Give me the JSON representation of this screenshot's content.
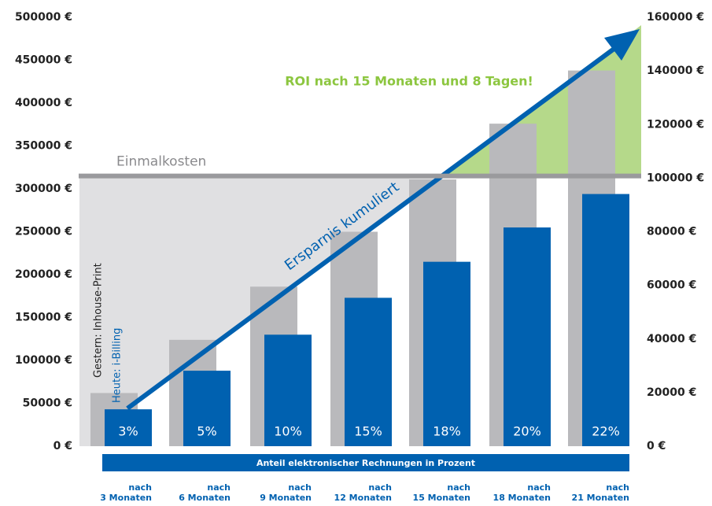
{
  "chart_data": {
    "type": "bar",
    "categories": [
      [
        "nach",
        "3 Monaten"
      ],
      [
        "nach",
        "6 Monaten"
      ],
      [
        "nach",
        "9 Monaten"
      ],
      [
        "nach",
        "12 Monaten"
      ],
      [
        "nach",
        "15 Monaten"
      ],
      [
        "nach",
        "18 Monaten"
      ],
      [
        "nach",
        "21 Monaten"
      ]
    ],
    "series": [
      {
        "name": "Gestern: Inhouse-Print",
        "color": "#b9b9bc",
        "values": [
          62000,
          124000,
          186000,
          250000,
          311000,
          376000,
          438000
        ]
      },
      {
        "name": "Heute: i-Billing",
        "color": "#0061b0",
        "values": [
          43000,
          88000,
          130000,
          173000,
          215000,
          255000,
          294000
        ],
        "value_labels": [
          "3%",
          "5%",
          "10%",
          "15%",
          "18%",
          "20%",
          "22%"
        ]
      }
    ],
    "ylim": [
      0,
      500000
    ],
    "yticks": [
      {
        "value": 0,
        "label": "0 €"
      },
      {
        "value": 50000,
        "label": "50000 €"
      },
      {
        "value": 100000,
        "label": "100000 €"
      },
      {
        "value": 150000,
        "label": "150000 €"
      },
      {
        "value": 200000,
        "label": "200000 €"
      },
      {
        "value": 250000,
        "label": "250000 €"
      },
      {
        "value": 300000,
        "label": "300000 €"
      },
      {
        "value": 350000,
        "label": "350000 €"
      },
      {
        "value": 400000,
        "label": "400000 €"
      },
      {
        "value": 450000,
        "label": "450000 €"
      },
      {
        "value": 500000,
        "label": "500000 €"
      }
    ],
    "y2lim": [
      0,
      160000
    ],
    "y2ticks": [
      {
        "value": 0,
        "label": "0 €"
      },
      {
        "value": 20000,
        "label": "20000 €"
      },
      {
        "value": 40000,
        "label": "40000 €"
      },
      {
        "value": 60000,
        "label": "60000 €"
      },
      {
        "value": 80000,
        "label": "80000 €"
      },
      {
        "value": 100000,
        "label": "100000 €"
      },
      {
        "value": 120000,
        "label": "120000 €"
      },
      {
        "value": 140000,
        "label": "140000 €"
      },
      {
        "value": 160000,
        "label": "160000 €"
      }
    ],
    "threshold": {
      "value": 315000,
      "label": "Einmalkosten"
    },
    "annotations": [
      "ROI nach 15 Monaten und 8 Tagen!",
      "Ersparnis kumuliert"
    ],
    "xlabel": "Anteil elektronischer Rechnungen in Prozent"
  }
}
